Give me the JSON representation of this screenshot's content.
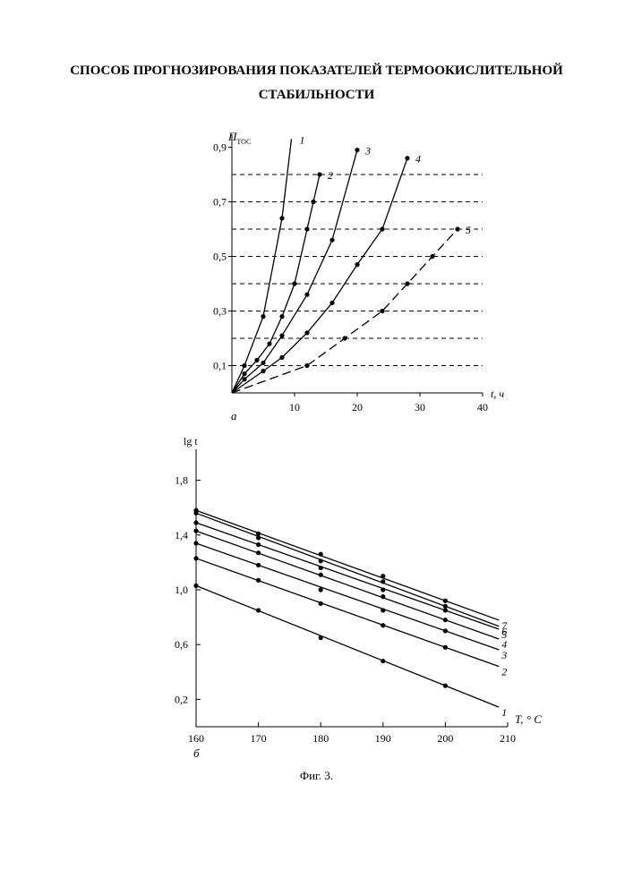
{
  "document": {
    "title_line1": "СПОСОБ ПРОГНОЗИРОВАНИЯ ПОКАЗАТЕЛЕЙ ТЕРМООКИСЛИТЕЛЬНОЙ",
    "title_line2": "СТАБИЛЬНОСТИ",
    "caption": "Фиг. 3."
  },
  "chart_data": [
    {
      "type": "line",
      "panel_label": "а",
      "ylabel": "П",
      "ylabel_sub": "ТОС",
      "xlabel": "t,  ч",
      "xlim": [
        0,
        40
      ],
      "ylim": [
        0,
        0.95
      ],
      "xticks": [
        10,
        20,
        30,
        40
      ],
      "xtick_labels": [
        "10",
        "20",
        "30",
        "40"
      ],
      "yticks": [
        0.1,
        0.3,
        0.5,
        0.7,
        0.9
      ],
      "ytick_labels": [
        "0,1",
        "0,3",
        "0,5",
        "0,7",
        "0,9"
      ],
      "hgrid_dashed": [
        0.1,
        0.2,
        0.3,
        0.4,
        0.5,
        0.6,
        0.7,
        0.8
      ],
      "series": [
        {
          "name": "1",
          "dashed": false,
          "x": [
            0,
            2,
            5,
            8,
            9.5
          ],
          "y": [
            0,
            0.1,
            0.28,
            0.64,
            0.93
          ],
          "marker_indices": [
            1,
            2,
            3
          ]
        },
        {
          "name": "2",
          "dashed": false,
          "x": [
            0,
            2,
            4,
            6,
            8,
            10,
            12,
            13,
            14
          ],
          "y": [
            0,
            0.07,
            0.12,
            0.18,
            0.28,
            0.4,
            0.6,
            0.7,
            0.8
          ],
          "marker_indices": [
            1,
            2,
            3,
            4,
            5,
            6,
            7,
            8
          ]
        },
        {
          "name": "3",
          "dashed": false,
          "x": [
            0,
            2,
            5,
            8,
            12,
            16,
            20
          ],
          "y": [
            0,
            0.05,
            0.11,
            0.21,
            0.36,
            0.56,
            0.89
          ],
          "marker_indices": [
            1,
            2,
            3,
            4,
            5,
            6
          ]
        },
        {
          "name": "4",
          "dashed": false,
          "x": [
            0,
            5,
            8,
            12,
            16,
            20,
            24,
            28
          ],
          "y": [
            0,
            0.08,
            0.13,
            0.22,
            0.33,
            0.47,
            0.6,
            0.86
          ],
          "marker_indices": [
            1,
            2,
            3,
            4,
            5,
            6,
            7
          ]
        },
        {
          "name": "5",
          "dashed": true,
          "x": [
            0,
            12,
            18,
            24,
            28,
            32,
            36
          ],
          "y": [
            0,
            0.1,
            0.2,
            0.3,
            0.4,
            0.5,
            0.6
          ],
          "marker_indices": [
            1,
            2,
            3,
            4,
            5,
            6
          ]
        }
      ]
    },
    {
      "type": "line",
      "panel_label": "б",
      "ylabel": "lg t",
      "xlabel": "T, ° С",
      "xlim": [
        160,
        210
      ],
      "ylim": [
        0,
        1.95
      ],
      "xticks": [
        160,
        170,
        180,
        190,
        200,
        210
      ],
      "xtick_labels": [
        "160",
        "170",
        "180",
        "190",
        "200",
        "210"
      ],
      "yticks": [
        0.2,
        0.6,
        1.0,
        1.4,
        1.8
      ],
      "ytick_labels": [
        "0,2",
        "0,6",
        "1,0",
        "1,4",
        "1,8"
      ],
      "series": [
        {
          "name": "1",
          "x": [
            160,
            170,
            180,
            190,
            200
          ],
          "y": [
            1.03,
            0.85,
            0.65,
            0.48,
            0.3
          ]
        },
        {
          "name": "2",
          "x": [
            160,
            170,
            180,
            190,
            200
          ],
          "y": [
            1.23,
            1.07,
            0.9,
            0.74,
            0.58
          ]
        },
        {
          "name": "3",
          "x": [
            160,
            170,
            180,
            190,
            200
          ],
          "y": [
            1.34,
            1.18,
            1.0,
            0.85,
            0.7
          ]
        },
        {
          "name": "4",
          "x": [
            160,
            170,
            180,
            190,
            200
          ],
          "y": [
            1.43,
            1.27,
            1.11,
            0.95,
            0.78
          ]
        },
        {
          "name": "5",
          "x": [
            160,
            170,
            180,
            190,
            200
          ],
          "y": [
            1.49,
            1.33,
            1.16,
            1.0,
            0.85
          ]
        },
        {
          "name": "6",
          "x": [
            160,
            170,
            180,
            190,
            200
          ],
          "y": [
            1.56,
            1.38,
            1.21,
            1.06,
            0.88
          ]
        },
        {
          "name": "7",
          "x": [
            160,
            170,
            180,
            190,
            200
          ],
          "y": [
            1.58,
            1.41,
            1.26,
            1.1,
            0.92
          ]
        }
      ]
    }
  ]
}
